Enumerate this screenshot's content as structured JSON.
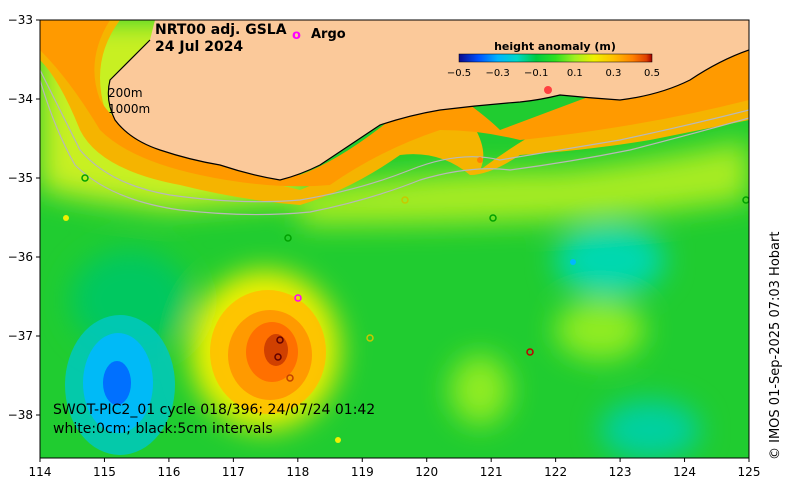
{
  "map": {
    "title": "NRT00 adj. GSLA",
    "date": "24 Jul 2024",
    "argo_marker": "o",
    "argo_label": "Argo",
    "contour_200": "200m",
    "contour_1000": "1000m",
    "satellite_line1": "SWOT-PIC2_01 cycle 018/396; 24/07/24 01:42",
    "satellite_line2": "white:0cm; black:5cm intervals",
    "credit": "© IMOS 01-Sep-2025 07:03 Hobart",
    "colorbar": {
      "title": "height anomaly (m)",
      "ticks": [
        "−0.5",
        "−0.3",
        "−0.1",
        "0.1",
        "0.3",
        "0.5"
      ],
      "colors": [
        "#0a0a8c",
        "#0050ff",
        "#00b4ff",
        "#00d8c8",
        "#00cc40",
        "#30e020",
        "#a0f020",
        "#f0f000",
        "#ffc000",
        "#ff8000",
        "#e04000",
        "#a00000"
      ]
    },
    "lat_labels": [
      "−33",
      "−34",
      "−35",
      "−36",
      "−37",
      "−38"
    ],
    "lon_labels": [
      "114",
      "115",
      "116",
      "117",
      "118",
      "119",
      "120",
      "121",
      "122",
      "123",
      "124",
      "125"
    ],
    "colors": {
      "land": "#fbc99a",
      "ocean_base": "#20cc30"
    }
  }
}
